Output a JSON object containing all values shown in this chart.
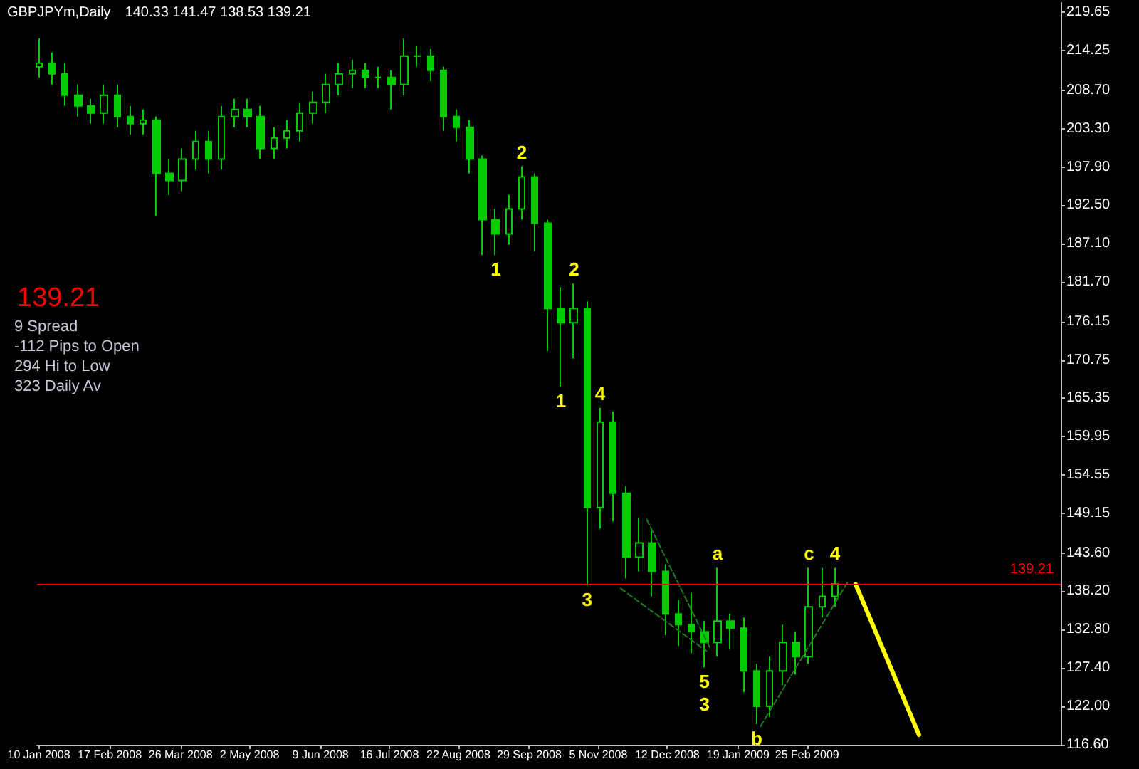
{
  "chart_data": {
    "type": "candlestick",
    "title": "GBPJPYm,Daily",
    "subtitle": "140.33 141.47 138.53 139.21",
    "x": [
      "2008-01-10",
      "2008-01-17",
      "2008-01-24",
      "2008-01-31",
      "2008-02-07",
      "2008-02-14",
      "2008-02-21",
      "2008-02-28",
      "2008-03-06",
      "2008-03-13",
      "2008-03-20",
      "2008-03-27",
      "2008-04-03",
      "2008-04-10",
      "2008-04-17",
      "2008-04-24",
      "2008-05-01",
      "2008-05-08",
      "2008-05-15",
      "2008-05-22",
      "2008-05-29",
      "2008-06-05",
      "2008-06-12",
      "2008-06-19",
      "2008-06-26",
      "2008-07-03",
      "2008-07-10",
      "2008-07-17",
      "2008-07-24",
      "2008-07-31",
      "2008-08-07",
      "2008-08-14",
      "2008-08-21",
      "2008-08-28",
      "2008-09-04",
      "2008-09-11",
      "2008-09-18",
      "2008-09-25",
      "2008-10-02",
      "2008-10-09",
      "2008-10-16",
      "2008-10-23",
      "2008-10-30",
      "2008-11-06",
      "2008-11-13",
      "2008-11-20",
      "2008-11-27",
      "2008-12-04",
      "2008-12-11",
      "2008-12-18",
      "2008-12-25",
      "2009-01-01",
      "2009-01-08",
      "2009-01-15",
      "2009-01-22",
      "2009-01-29",
      "2009-02-05",
      "2009-02-12",
      "2009-02-19",
      "2009-02-26",
      "2009-03-05",
      "2009-03-12"
    ],
    "ohlc": [
      [
        212,
        216,
        210.5,
        212.5
      ],
      [
        212.5,
        214,
        209.5,
        211
      ],
      [
        211,
        212.5,
        206.5,
        208
      ],
      [
        208,
        209.5,
        205,
        206.5
      ],
      [
        206.5,
        207.5,
        204,
        205.5
      ],
      [
        205.5,
        209.5,
        204,
        208
      ],
      [
        208,
        209.5,
        203.5,
        205
      ],
      [
        205,
        206.5,
        202.5,
        204
      ],
      [
        204,
        206,
        202.5,
        204.5
      ],
      [
        204.5,
        205,
        191,
        197
      ],
      [
        197,
        199,
        194,
        196
      ],
      [
        196,
        200.5,
        194.5,
        199
      ],
      [
        199,
        203,
        197.5,
        201.5
      ],
      [
        201.5,
        203,
        197,
        199
      ],
      [
        199,
        206.5,
        197.5,
        205
      ],
      [
        205,
        207.5,
        203.5,
        206
      ],
      [
        206,
        207.5,
        203.5,
        205
      ],
      [
        205,
        206.5,
        199,
        200.5
      ],
      [
        200.5,
        203.5,
        199,
        202
      ],
      [
        202,
        204.5,
        200.5,
        203
      ],
      [
        203,
        207,
        201.5,
        205.5
      ],
      [
        205.5,
        208.5,
        204,
        207
      ],
      [
        207,
        211,
        205.5,
        209.5
      ],
      [
        209.5,
        212.5,
        208,
        211
      ],
      [
        211,
        213,
        209,
        211.5
      ],
      [
        211.5,
        212.5,
        209,
        210.5
      ],
      [
        210.5,
        212,
        209,
        210.5
      ],
      [
        210.5,
        211.5,
        206,
        209.5
      ],
      [
        209.5,
        216,
        208,
        213.5
      ],
      [
        213.5,
        215,
        212,
        213.5
      ],
      [
        213.5,
        214.5,
        210,
        211.5
      ],
      [
        211.5,
        212,
        203,
        205
      ],
      [
        205,
        206,
        201.5,
        203.5
      ],
      [
        203.5,
        204.5,
        197,
        199
      ],
      [
        199,
        199.5,
        185.5,
        190.5
      ],
      [
        190.5,
        192,
        185.5,
        188.5
      ],
      [
        188.5,
        194,
        187,
        192
      ],
      [
        192,
        198,
        190.5,
        196.5
      ],
      [
        196.5,
        197,
        186,
        190
      ],
      [
        190,
        190.5,
        172,
        178
      ],
      [
        178,
        181,
        167,
        176
      ],
      [
        176,
        181.5,
        171,
        178
      ],
      [
        178,
        179,
        139,
        150
      ],
      [
        150,
        164,
        147,
        162
      ],
      [
        162,
        163.5,
        148,
        152
      ],
      [
        152,
        153,
        140,
        143
      ],
      [
        143,
        148.5,
        141,
        145
      ],
      [
        145,
        147,
        137.5,
        141
      ],
      [
        141,
        142,
        132,
        135
      ],
      [
        135,
        137,
        130.5,
        133.5
      ],
      [
        133.5,
        138,
        129.5,
        132.5
      ],
      [
        132.5,
        134,
        127.5,
        131
      ],
      [
        131,
        141.5,
        129,
        134
      ],
      [
        134,
        135,
        130,
        133
      ],
      [
        133,
        134.5,
        124,
        127
      ],
      [
        127,
        128,
        119.5,
        122
      ],
      [
        122,
        129,
        120.5,
        127
      ],
      [
        127,
        133.5,
        125,
        131
      ],
      [
        131,
        132.5,
        126.5,
        129
      ],
      [
        129,
        141.5,
        128,
        136
      ],
      [
        136,
        141.5,
        134.5,
        137.5
      ],
      [
        137.5,
        141.5,
        136,
        139.21
      ]
    ],
    "color": "#00cc00",
    "series": [
      {
        "type": "line",
        "x": [
          "2008-11-17",
          "2009-01-02"
        ],
        "values": [
          138.6,
          129.8
        ],
        "color": "#1f7a1f",
        "line_style": "dashed"
      },
      {
        "type": "line",
        "x": [
          "2008-12-01",
          "2009-01-04"
        ],
        "values": [
          148.3,
          130.2
        ],
        "color": "#1f7a1f",
        "line_style": "dashed"
      },
      {
        "type": "line",
        "x": [
          "2009-01-31",
          "2009-03-19"
        ],
        "values": [
          119.2,
          139.6
        ],
        "color": "#1f7a1f",
        "line_style": "dashed"
      },
      {
        "type": "line",
        "x": [
          "2009-03-23",
          "2009-04-26"
        ],
        "values": [
          139.2,
          118.0
        ],
        "color": "#ffff00",
        "line_style": "solid"
      }
    ],
    "xlim": [
      "2008-01-09",
      "2009-07-11"
    ],
    "xticks": [
      {
        "value": "2008-01-10",
        "label": "10 Jan 2008"
      },
      {
        "value": "2008-02-17",
        "label": "17 Feb 2008"
      },
      {
        "value": "2008-03-26",
        "label": "26 Mar 2008"
      },
      {
        "value": "2008-05-02",
        "label": "2 May 2008"
      },
      {
        "value": "2008-06-09",
        "label": "9 Jun 2008"
      },
      {
        "value": "2008-07-16",
        "label": "16 Jul 2008"
      },
      {
        "value": "2008-08-22",
        "label": "22 Aug 2008"
      },
      {
        "value": "2008-09-29",
        "label": "29 Sep 2008"
      },
      {
        "value": "2008-11-05",
        "label": "5 Nov 2008"
      },
      {
        "value": "2008-12-12",
        "label": "12 Dec 2008"
      },
      {
        "value": "2009-01-19",
        "label": "19 Jan 2009"
      },
      {
        "value": "2009-02-25",
        "label": "25 Feb 2009"
      }
    ],
    "ylim": [
      116.6,
      221
    ],
    "yticks": [
      {
        "value": 116.6,
        "label": "116.60"
      },
      {
        "value": 122,
        "label": "122.00"
      },
      {
        "value": 127.4,
        "label": "127.40"
      },
      {
        "value": 132.8,
        "label": "132.80"
      },
      {
        "value": 138.2,
        "label": "138.20"
      },
      {
        "value": 143.6,
        "label": "143.60"
      },
      {
        "value": 149.15,
        "label": "149.15"
      },
      {
        "value": 154.55,
        "label": "154.55"
      },
      {
        "value": 159.95,
        "label": "159.95"
      },
      {
        "value": 165.35,
        "label": "165.35"
      },
      {
        "value": 170.75,
        "label": "170.75"
      },
      {
        "value": 176.15,
        "label": "176.15"
      },
      {
        "value": 181.7,
        "label": "181.70"
      },
      {
        "value": 187.1,
        "label": "187.10"
      },
      {
        "value": 192.5,
        "label": "192.50"
      },
      {
        "value": 197.9,
        "label": "197.90"
      },
      {
        "value": 203.3,
        "label": "203.30"
      },
      {
        "value": 208.7,
        "label": "208.70"
      },
      {
        "value": 214.25,
        "label": "214.25"
      },
      {
        "value": 219.65,
        "label": "219.65"
      }
    ],
    "ref_lines": [
      {
        "axis": "y",
        "value": 139.21,
        "label": "139.21",
        "color": "#ff0000"
      }
    ],
    "annotations": [
      "139.21",
      "9 Spread",
      "-112 Pips to Open",
      "294 Hi to Low",
      "323 Daily Av",
      {
        "text": "1",
        "x": "2008-09-11",
        "y": 185.5
      },
      {
        "text": "2",
        "x": "2008-09-25",
        "y": 198
      },
      {
        "text": "1",
        "x": "2008-10-16",
        "y": 167
      },
      {
        "text": "2",
        "x": "2008-10-23",
        "y": 181.5
      },
      {
        "text": "3",
        "x": "2008-10-30",
        "y": 139
      },
      {
        "text": "4",
        "x": "2008-11-06",
        "y": 164
      },
      {
        "text": "5",
        "x": "2009-01-01",
        "y": 127.5
      },
      {
        "text": "3",
        "x": "2009-01-01",
        "y": 127.5
      },
      {
        "text": "a",
        "x": "2009-01-08",
        "y": 141.5
      },
      {
        "text": "b",
        "x": "2009-01-29",
        "y": 119.5
      },
      {
        "text": "c",
        "x": "2009-02-26",
        "y": 141.5
      },
      {
        "text": "4",
        "x": "2009-03-12",
        "y": 141.5
      }
    ]
  }
}
